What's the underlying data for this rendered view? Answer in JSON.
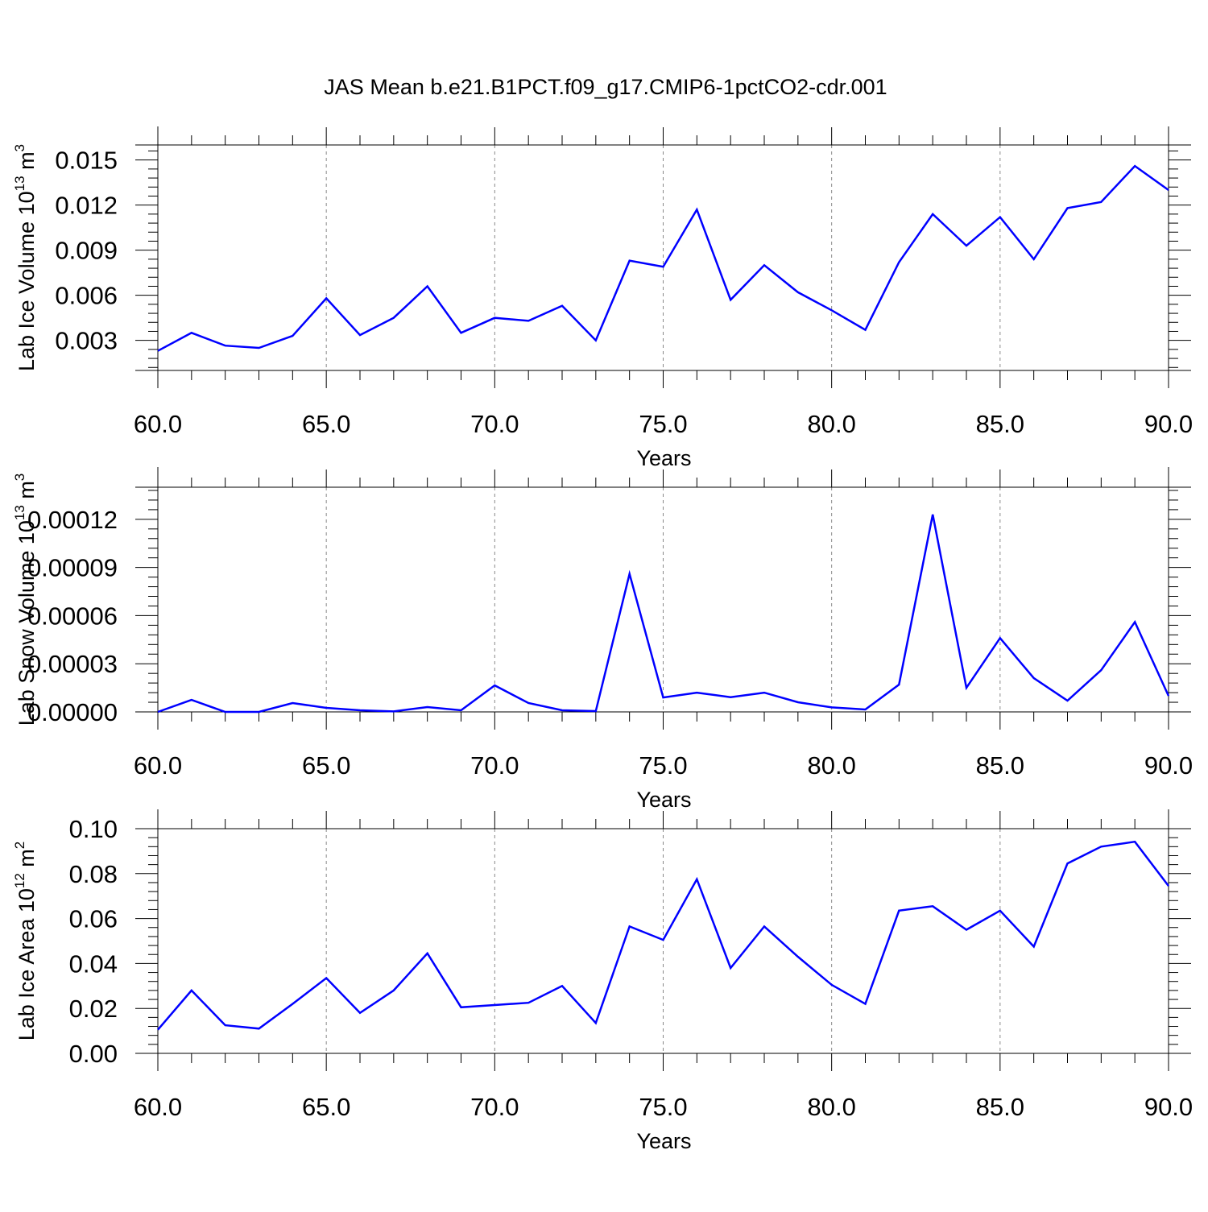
{
  "title": "JAS Mean b.e21.B1PCT.f09_g17.CMIP6-1pctCO2-cdr.001",
  "line_color": "#0000ff",
  "chart_data": [
    {
      "type": "line",
      "ylabel": "Lab Ice Volume 10",
      "ylabel_exp": "13",
      "ylabel_unit": " m",
      "ylabel_unit_exp": "3",
      "xlabel": "Years",
      "xlim": [
        60,
        90
      ],
      "ylim": [
        0.001,
        0.016
      ],
      "yticks": [
        "0.003",
        "0.006",
        "0.009",
        "0.012",
        "0.015"
      ],
      "xticks": [
        "60.0",
        "65.0",
        "70.0",
        "75.0",
        "80.0",
        "85.0",
        "90.0"
      ],
      "series": [
        {
          "x": [
            60,
            61,
            62,
            63,
            64,
            65,
            66,
            67,
            68,
            69,
            70,
            71,
            72,
            73,
            74,
            75,
            76,
            77,
            78,
            79,
            80,
            81,
            82,
            83,
            84,
            85,
            86,
            87,
            88,
            89,
            90
          ],
          "values": [
            0.0023,
            0.0035,
            0.00265,
            0.0025,
            0.0033,
            0.0058,
            0.00335,
            0.0045,
            0.0066,
            0.0035,
            0.0045,
            0.0043,
            0.0053,
            0.003,
            0.0083,
            0.0079,
            0.0117,
            0.0057,
            0.008,
            0.0062,
            0.005,
            0.0037,
            0.0082,
            0.0114,
            0.0093,
            0.0112,
            0.0084,
            0.0118,
            0.0122,
            0.0146,
            0.013
          ]
        }
      ]
    },
    {
      "type": "line",
      "ylabel": "Lab Snow Volume 10",
      "ylabel_exp": "13",
      "ylabel_unit": " m",
      "ylabel_unit_exp": "3",
      "xlabel": "Years",
      "xlim": [
        60,
        90
      ],
      "ylim": [
        0,
        0.00014
      ],
      "yticks": [
        "0.00000",
        "0.00003",
        "0.00006",
        "0.00009",
        "0.00012"
      ],
      "xticks": [
        "60.0",
        "65.0",
        "70.0",
        "75.0",
        "80.0",
        "85.0",
        "90.0"
      ],
      "series": [
        {
          "x": [
            60,
            61,
            62,
            63,
            64,
            65,
            66,
            67,
            68,
            69,
            70,
            71,
            72,
            73,
            74,
            75,
            76,
            77,
            78,
            79,
            80,
            81,
            82,
            83,
            84,
            85,
            86,
            87,
            88,
            89,
            90
          ],
          "values": [
            0,
            7.5e-06,
            0,
            0,
            5.5e-06,
            2.5e-06,
            1e-06,
            3e-07,
            3e-06,
            1e-06,
            1.65e-05,
            5.5e-06,
            1e-06,
            5e-07,
            8.6e-05,
            9e-06,
            1.2e-05,
            9.2e-06,
            1.2e-05,
            6e-06,
            2.8e-06,
            1.5e-06,
            1.7e-05,
            0.000123,
            1.5e-05,
            4.6e-05,
            2.1e-05,
            7e-06,
            2.6e-05,
            5.6e-05,
            1e-05
          ]
        }
      ]
    },
    {
      "type": "line",
      "ylabel": "Lab Ice Area 10",
      "ylabel_exp": "12",
      "ylabel_unit": " m",
      "ylabel_unit_exp": "2",
      "xlabel": "Years",
      "xlim": [
        60,
        90
      ],
      "ylim": [
        0,
        0.1
      ],
      "yticks": [
        "0.00",
        "0.02",
        "0.04",
        "0.06",
        "0.08",
        "0.10"
      ],
      "xticks": [
        "60.0",
        "65.0",
        "70.0",
        "75.0",
        "80.0",
        "85.0",
        "90.0"
      ],
      "series": [
        {
          "x": [
            60,
            61,
            62,
            63,
            64,
            65,
            66,
            67,
            68,
            69,
            70,
            71,
            72,
            73,
            74,
            75,
            76,
            77,
            78,
            79,
            80,
            81,
            82,
            83,
            84,
            85,
            86,
            87,
            88,
            89,
            90
          ],
          "values": [
            0.0105,
            0.028,
            0.0125,
            0.011,
            0.022,
            0.0335,
            0.018,
            0.028,
            0.0445,
            0.0205,
            0.0215,
            0.0225,
            0.03,
            0.0135,
            0.0565,
            0.0505,
            0.0775,
            0.038,
            0.0565,
            0.043,
            0.0305,
            0.022,
            0.0635,
            0.0655,
            0.055,
            0.0635,
            0.0475,
            0.0845,
            0.092,
            0.0942,
            0.0745
          ]
        }
      ]
    }
  ]
}
